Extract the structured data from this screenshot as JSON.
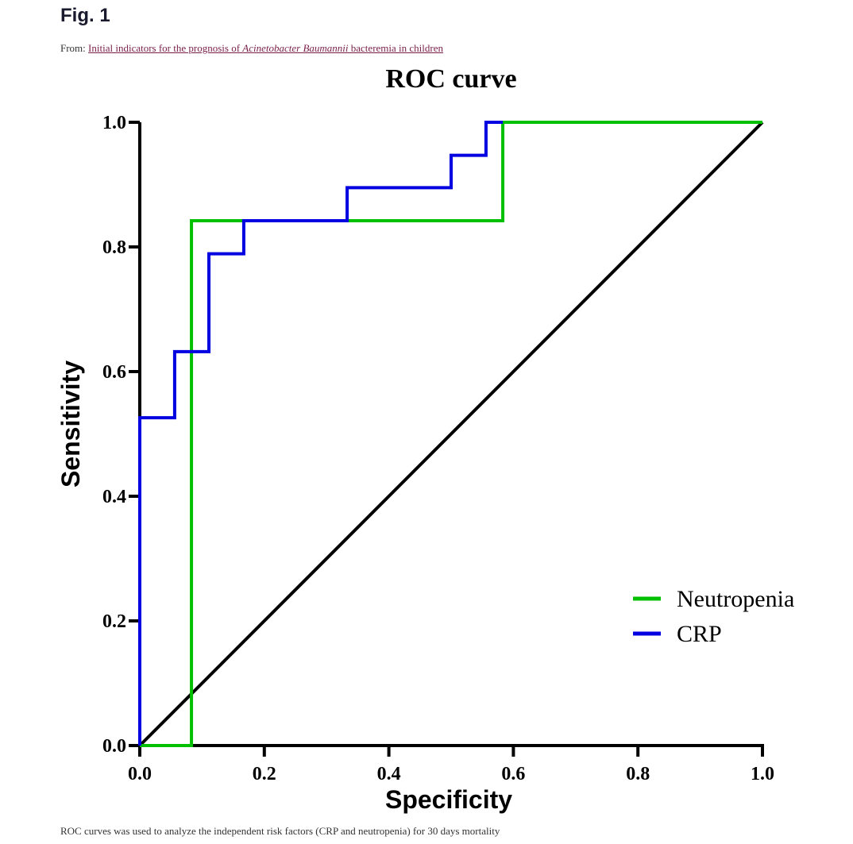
{
  "header": {
    "fig_label": "Fig. 1",
    "from_prefix": "From: ",
    "link_part1": "Initial indicators for the prognosis of ",
    "link_italic": "Acinetobacter Baumannii",
    "link_part2": " bacteremia in children"
  },
  "caption": "ROC curves was used to analyze the independent risk factors (CRP and neutropenia) for 30 days mortality",
  "chart_data": {
    "type": "line",
    "title": "ROC curve",
    "xlabel": "Specificity",
    "ylabel": "Sensitivity",
    "xlim": [
      0,
      1
    ],
    "ylim": [
      0,
      1
    ],
    "xticks": [
      "0.0",
      "0.2",
      "0.4",
      "0.6",
      "0.8",
      "1.0"
    ],
    "yticks": [
      "0.0",
      "0.2",
      "0.4",
      "0.6",
      "0.8",
      "1.0"
    ],
    "grid": false,
    "legend_position": "bottom-right",
    "series": [
      {
        "name": "Neutropenia",
        "color": "#00c000",
        "points": [
          [
            0,
            0
          ],
          [
            0.083,
            0
          ],
          [
            0.083,
            0.842
          ],
          [
            0.583,
            0.842
          ],
          [
            0.583,
            1.0
          ],
          [
            1.0,
            1.0
          ]
        ]
      },
      {
        "name": "CRP",
        "color": "#0000e0",
        "points": [
          [
            0,
            0
          ],
          [
            0,
            0.526
          ],
          [
            0.056,
            0.526
          ],
          [
            0.056,
            0.632
          ],
          [
            0.111,
            0.632
          ],
          [
            0.111,
            0.789
          ],
          [
            0.167,
            0.789
          ],
          [
            0.167,
            0.842
          ],
          [
            0.333,
            0.842
          ],
          [
            0.333,
            0.895
          ],
          [
            0.5,
            0.895
          ],
          [
            0.5,
            0.947
          ],
          [
            0.556,
            0.947
          ],
          [
            0.556,
            1.0
          ],
          [
            0.583,
            1.0
          ]
        ]
      }
    ],
    "reference_line": {
      "color": "#000000",
      "points": [
        [
          0,
          0
        ],
        [
          1,
          1
        ]
      ]
    }
  }
}
